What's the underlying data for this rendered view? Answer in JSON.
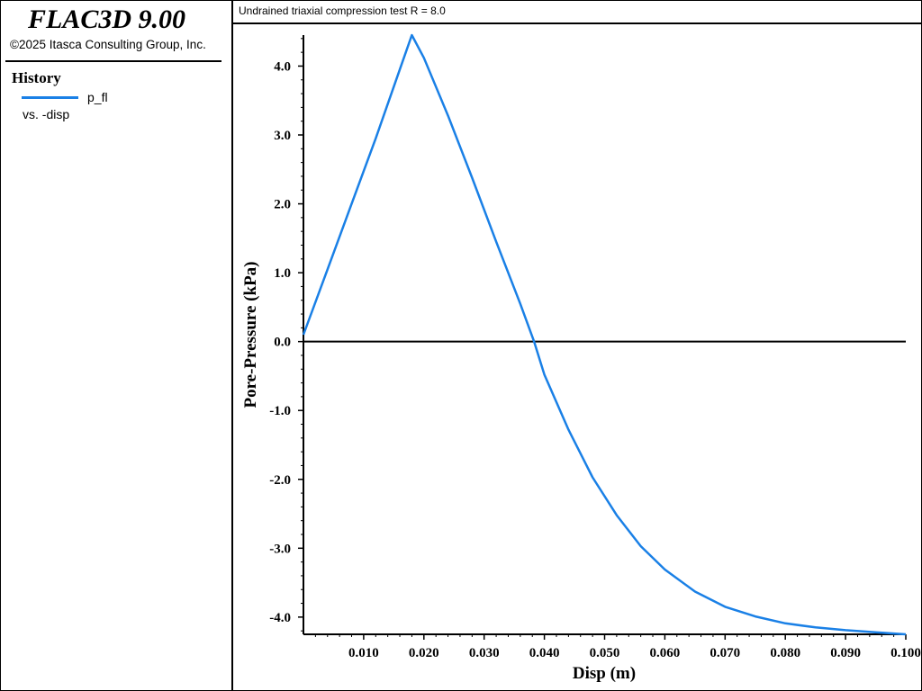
{
  "app": {
    "title": "FLAC3D 9.00",
    "copyright": "©2025 Itasca Consulting Group, Inc."
  },
  "legend": {
    "heading": "History",
    "series_label": "p_fl",
    "vs_label": "vs. -disp"
  },
  "colors": {
    "series": "#1a80e6",
    "axis": "#000000"
  },
  "chart_data": {
    "type": "line",
    "title": "Undrained triaxial compression test R = 8.0",
    "xlabel": "Disp (m)",
    "ylabel": "Pore-Pressure (kPa)",
    "xlim": [
      0.0,
      0.1
    ],
    "ylim": [
      -4.25,
      4.45
    ],
    "x_ticks": [
      0.01,
      0.02,
      0.03,
      0.04,
      0.05,
      0.06,
      0.07,
      0.08,
      0.09,
      0.1
    ],
    "x_tick_labels": [
      "0.010",
      "0.020",
      "0.030",
      "0.040",
      "0.050",
      "0.060",
      "0.070",
      "0.080",
      "0.090",
      "0.100"
    ],
    "y_ticks": [
      4.0,
      3.0,
      2.0,
      1.0,
      0.0,
      -1.0,
      -2.0,
      -3.0,
      -4.0
    ],
    "y_tick_labels": [
      "4.0",
      "3.0",
      "2.0",
      "1.0",
      "0.0",
      "-1.0",
      "-2.0",
      "-3.0",
      "-4.0"
    ],
    "zero_line": true,
    "grid": false,
    "series": [
      {
        "name": "p_fl",
        "x": [
          0.0,
          0.004,
          0.008,
          0.012,
          0.016,
          0.018,
          0.02,
          0.024,
          0.028,
          0.032,
          0.036,
          0.0383,
          0.04,
          0.044,
          0.048,
          0.052,
          0.056,
          0.06,
          0.065,
          0.07,
          0.075,
          0.08,
          0.085,
          0.09,
          0.095,
          0.1
        ],
        "y": [
          0.1,
          1.05,
          2.0,
          2.95,
          3.95,
          4.45,
          4.12,
          3.28,
          2.38,
          1.45,
          0.55,
          0.0,
          -0.48,
          -1.28,
          -1.97,
          -2.52,
          -2.97,
          -3.31,
          -3.63,
          -3.85,
          -3.99,
          -4.09,
          -4.15,
          -4.19,
          -4.22,
          -4.25
        ]
      }
    ]
  }
}
